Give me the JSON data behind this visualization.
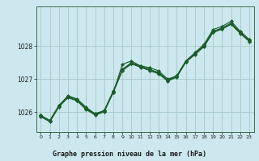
{
  "title": "Graphe pression niveau de la mer (hPa)",
  "bg_color": "#cce8ee",
  "grid_color": "#aacccc",
  "line_color": "#1a5c2a",
  "x_ticks": [
    0,
    1,
    2,
    3,
    4,
    5,
    6,
    7,
    8,
    9,
    10,
    11,
    12,
    13,
    14,
    15,
    16,
    17,
    18,
    19,
    20,
    21,
    22,
    23
  ],
  "ylim": [
    1025.4,
    1029.2
  ],
  "y_ticks": [
    1026,
    1027,
    1028
  ],
  "title_bg": "#1a5c2a",
  "title_color": "#cce8ee",
  "series": [
    [
      1025.9,
      1025.75,
      1026.2,
      1026.5,
      1026.4,
      1026.15,
      1025.95,
      1026.05,
      1026.6,
      1027.45,
      1027.55,
      1027.4,
      1027.35,
      1027.25,
      1027.0,
      1027.1,
      1027.55,
      1027.8,
      1028.05,
      1028.5,
      1028.6,
      1028.75,
      1028.45,
      1028.2
    ],
    [
      1025.9,
      1025.75,
      1026.2,
      1026.48,
      1026.38,
      1026.12,
      1025.95,
      1026.05,
      1026.65,
      1027.3,
      1027.5,
      1027.4,
      1027.3,
      1027.2,
      1026.98,
      1027.1,
      1027.55,
      1027.78,
      1028.02,
      1028.45,
      1028.55,
      1028.7,
      1028.42,
      1028.18
    ],
    [
      1025.88,
      1025.73,
      1026.18,
      1026.46,
      1026.36,
      1026.1,
      1025.93,
      1026.03,
      1026.62,
      1027.28,
      1027.48,
      1027.38,
      1027.28,
      1027.18,
      1026.96,
      1027.08,
      1027.53,
      1027.76,
      1028.0,
      1028.43,
      1028.53,
      1028.68,
      1028.4,
      1028.16
    ],
    [
      1025.86,
      1025.71,
      1026.16,
      1026.44,
      1026.34,
      1026.08,
      1025.91,
      1026.01,
      1026.6,
      1027.26,
      1027.46,
      1027.36,
      1027.26,
      1027.16,
      1026.94,
      1027.06,
      1027.51,
      1027.74,
      1027.98,
      1028.41,
      1028.51,
      1028.66,
      1028.38,
      1028.14
    ]
  ]
}
